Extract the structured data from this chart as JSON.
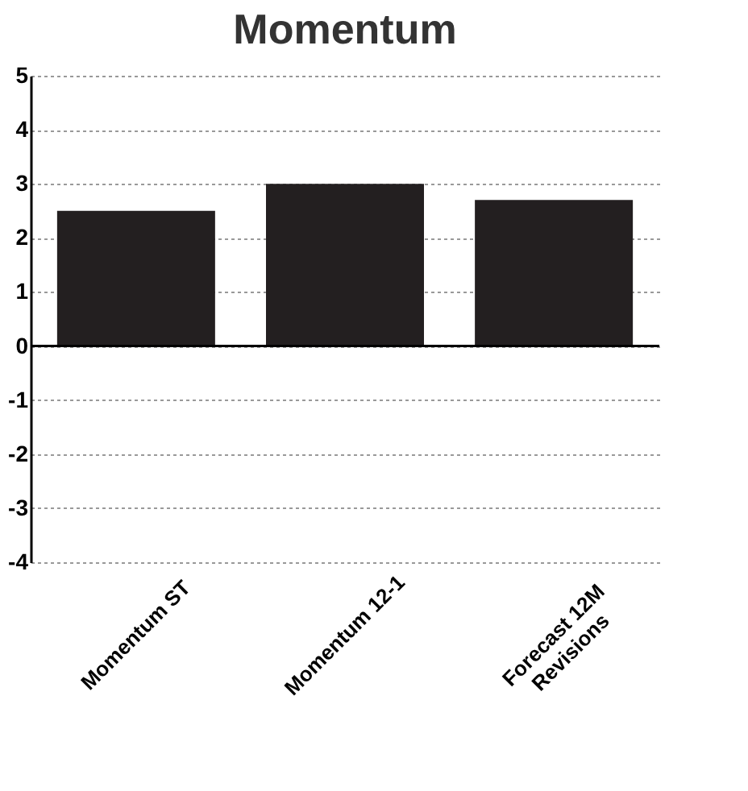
{
  "chart_data": {
    "type": "bar",
    "title": "Momentum",
    "categories": [
      "Momentum ST",
      "Momentum 12-1",
      "Forecast 12M Revisions"
    ],
    "values": [
      2.5,
      3.0,
      2.7
    ],
    "color": "#231f20",
    "ylim": [
      -4,
      5
    ],
    "yticks": [
      -4,
      -3,
      -2,
      -1,
      0,
      1,
      2,
      3,
      4,
      5
    ],
    "grid": "y"
  }
}
